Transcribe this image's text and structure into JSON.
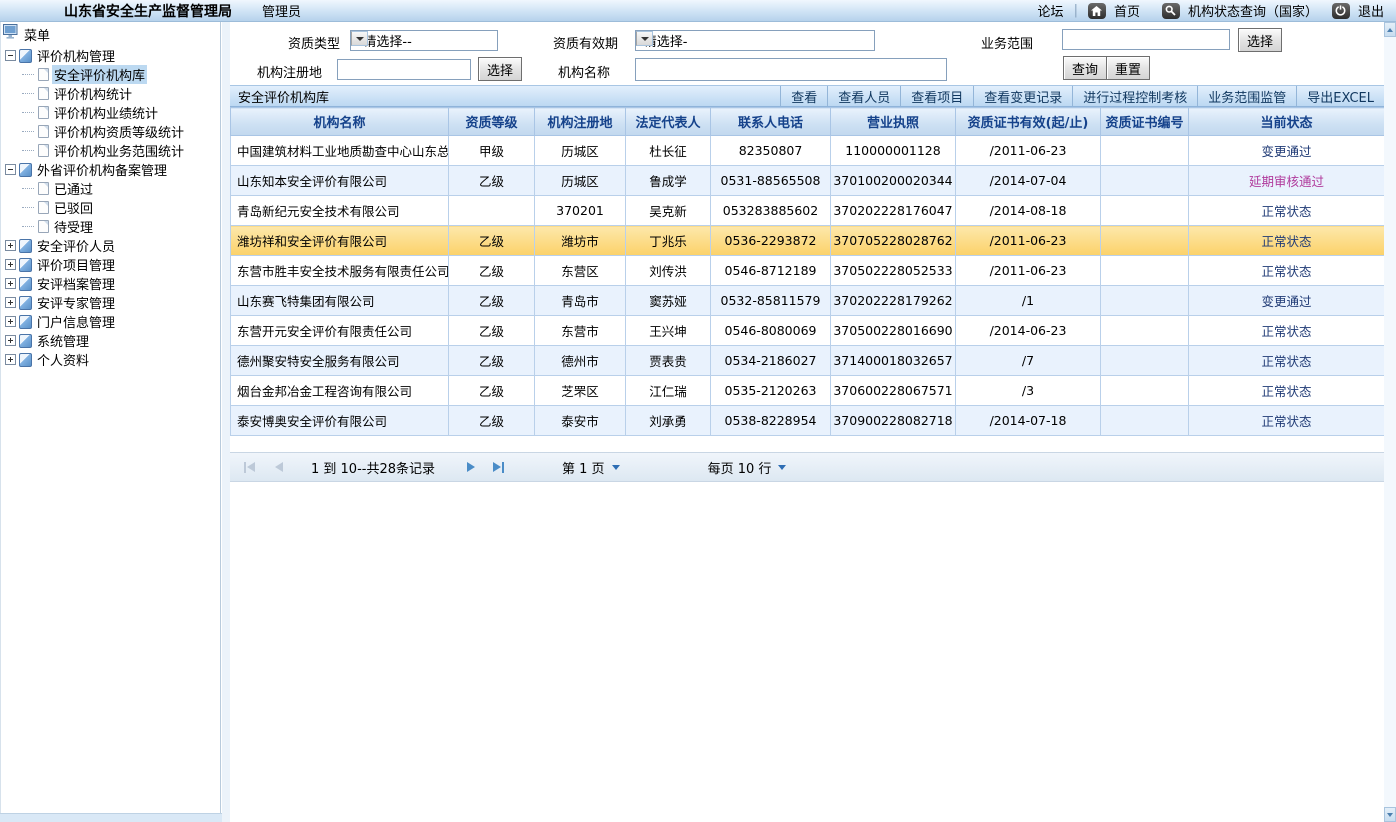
{
  "topbar": {
    "org_title": "山东省安全生产监督管理局",
    "user_role": "管理员",
    "forum_label": "论坛",
    "home_label": "首页",
    "status_query_label": "机构状态查询（国家）",
    "logout_label": "退出"
  },
  "sidebar": {
    "menu_label": "菜单",
    "tree": [
      {
        "label": "评价机构管理",
        "state": "expanded",
        "children": [
          {
            "label": "安全评价机构库",
            "selected": true
          },
          {
            "label": "评价机构统计"
          },
          {
            "label": "评价机构业绩统计"
          },
          {
            "label": "评价机构资质等级统计"
          },
          {
            "label": "评价机构业务范围统计"
          }
        ]
      },
      {
        "label": "外省评价机构备案管理",
        "state": "expanded",
        "children": [
          {
            "label": "已通过"
          },
          {
            "label": "已驳回"
          },
          {
            "label": "待受理"
          }
        ]
      },
      {
        "label": "安全评价人员",
        "state": "collapsed"
      },
      {
        "label": "评价项目管理",
        "state": "collapsed"
      },
      {
        "label": "安评档案管理",
        "state": "collapsed"
      },
      {
        "label": "安评专家管理",
        "state": "collapsed"
      },
      {
        "label": "门户信息管理",
        "state": "collapsed"
      },
      {
        "label": "系统管理",
        "state": "collapsed"
      },
      {
        "label": "个人资料",
        "state": "collapsed"
      }
    ]
  },
  "filters": {
    "qual_type_label": "资质类型",
    "qual_type_value": "--请选择--",
    "validity_label": "资质有效期",
    "validity_value": "-请选择-",
    "scope_label": "业务范围",
    "scope_value": "",
    "scope_select_button": "选择",
    "reg_place_label": "机构注册地",
    "reg_place_value": "",
    "reg_place_select_button": "选择",
    "org_name_label": "机构名称",
    "org_name_value": "",
    "query_button": "查询",
    "reset_button": "重置"
  },
  "toolbar": {
    "title": "安全评价机构库",
    "buttons": [
      "查看",
      "查看人员",
      "查看项目",
      "查看变更记录",
      "进行过程控制考核",
      "业务范围监管",
      "导出EXCEL"
    ]
  },
  "table": {
    "headers": [
      "机构名称",
      "资质等级",
      "机构注册地",
      "法定代表人",
      "联系人电话",
      "营业执照",
      "资质证书有效(起/止)",
      "资质证书编号",
      "当前状态"
    ],
    "status_colors": {
      "normal": "#1f3a75",
      "magenta": "#b03a9c"
    },
    "selected_row_color": "#fbd169",
    "rows": [
      {
        "cells": [
          "中国建筑材料工业地质勘查中心山东总队",
          "甲级",
          "历城区",
          "杜长征",
          "82350807",
          "110000001128",
          "/2011-06-23",
          "",
          "变更通过"
        ]
      },
      {
        "cells": [
          "山东知本安全评价有限公司",
          "乙级",
          "历城区",
          "鲁成学",
          "0531-88565508",
          "370100200020344",
          "/2014-07-04",
          "",
          "延期审核通过"
        ],
        "status_color": "magenta"
      },
      {
        "cells": [
          "青岛新纪元安全技术有限公司",
          "",
          "370201",
          "吴克新",
          "053283885602",
          "370202228176047",
          "/2014-08-18",
          "",
          "正常状态"
        ]
      },
      {
        "cells": [
          "潍坊祥和安全评价有限公司",
          "乙级",
          "潍坊市",
          "丁兆乐",
          "0536-2293872",
          "370705228028762",
          "/2011-06-23",
          "",
          "正常状态"
        ],
        "selected": true
      },
      {
        "cells": [
          "东营市胜丰安全技术服务有限责任公司",
          "乙级",
          "东营区",
          "刘传洪",
          "0546-8712189",
          "370502228052533",
          "/2011-06-23",
          "",
          "正常状态"
        ]
      },
      {
        "cells": [
          "山东赛飞特集团有限公司",
          "乙级",
          "青岛市",
          "窦苏娅",
          "0532-85811579",
          "370202228179262",
          "/1",
          "",
          "变更通过"
        ]
      },
      {
        "cells": [
          "东营开元安全评价有限责任公司",
          "乙级",
          "东营市",
          "王兴坤",
          "0546-8080069",
          "370500228016690",
          "/2014-06-23",
          "",
          "正常状态"
        ]
      },
      {
        "cells": [
          "德州聚安特安全服务有限公司",
          "乙级",
          "德州市",
          "贾表贵",
          "0534-2186027",
          "371400018032657",
          "/7",
          "",
          "正常状态"
        ]
      },
      {
        "cells": [
          "烟台金邦冶金工程咨询有限公司",
          "乙级",
          "芝罘区",
          "江仁瑞",
          "0535-2120263",
          "370600228067571",
          "/3",
          "",
          "正常状态"
        ]
      },
      {
        "cells": [
          "泰安博奥安全评价有限公司",
          "乙级",
          "泰安市",
          "刘承勇",
          "0538-8228954",
          "370900228082718",
          "/2014-07-18",
          "",
          "正常状态"
        ]
      }
    ]
  },
  "pagination": {
    "records_text": "1 到 10--共28条记录",
    "page_text": "第 1 页",
    "per_page_text": "每页 10 行"
  }
}
